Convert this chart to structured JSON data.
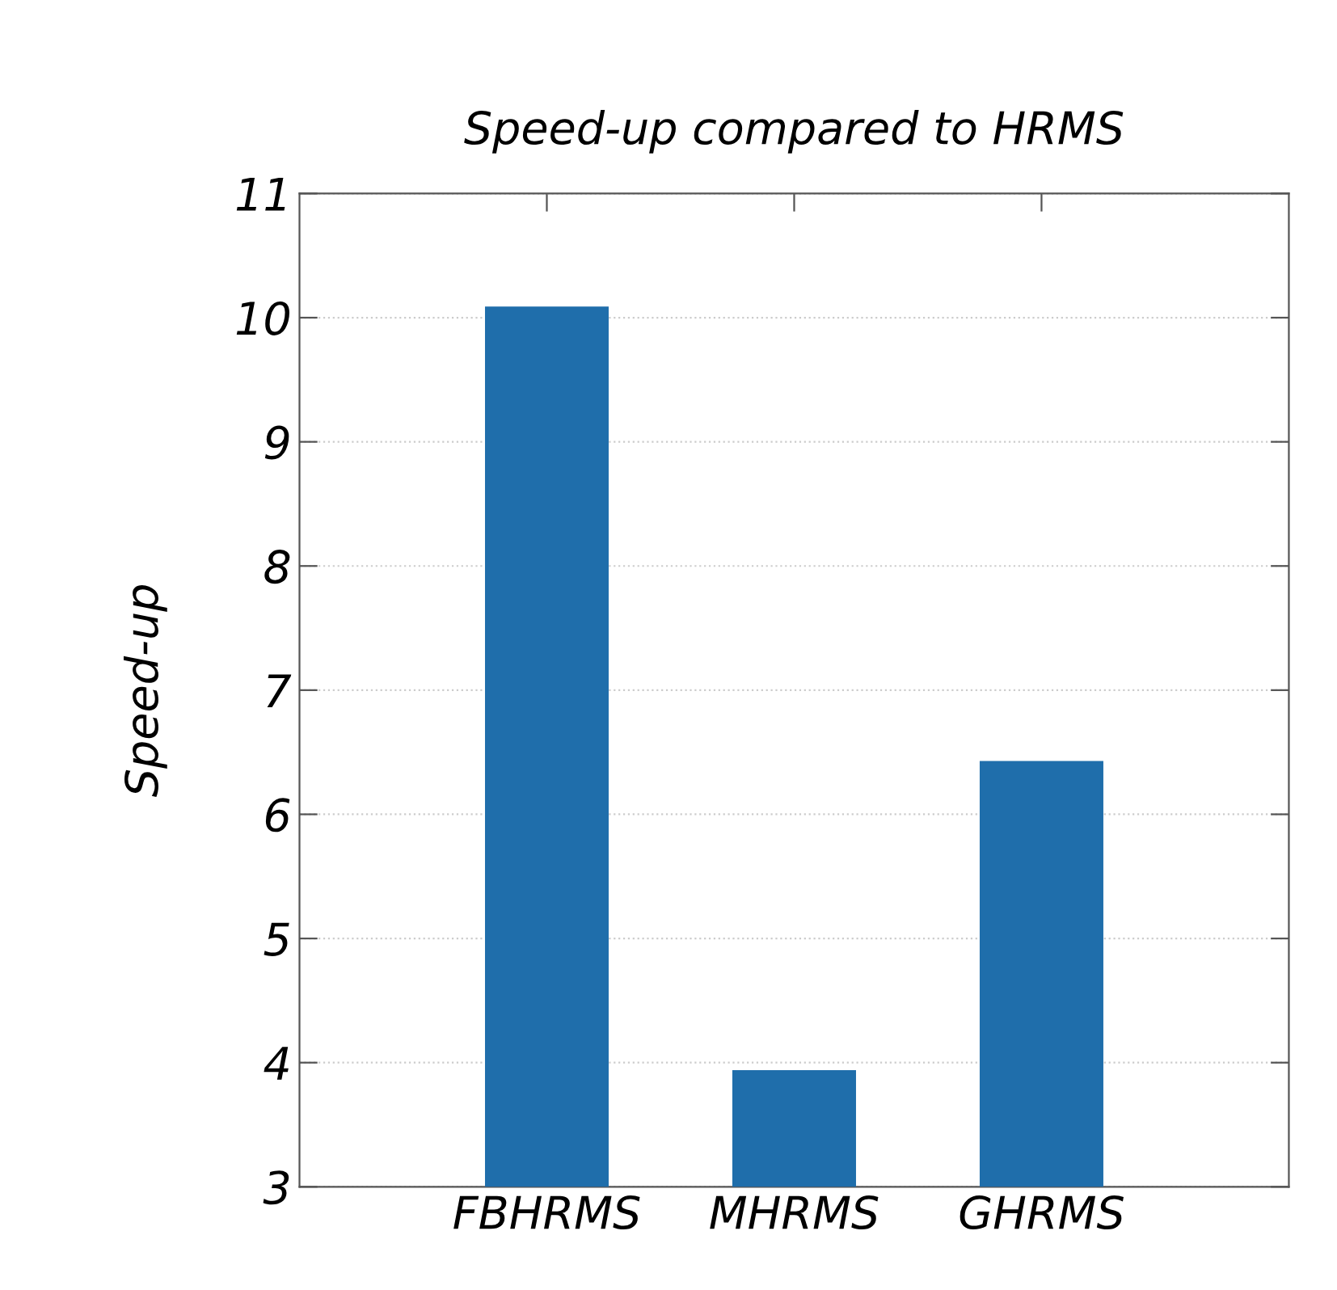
{
  "chart_data": {
    "type": "bar",
    "title": "Speed-up compared to HRMS",
    "ylabel": "Speed-up",
    "categories": [
      "FBHRMS",
      "MHRMS",
      "GHRMS"
    ],
    "values": [
      10.09,
      3.94,
      6.43
    ],
    "color": "#1f6eab",
    "ylim": [
      3,
      11
    ],
    "yticks": [
      3,
      4,
      5,
      6,
      7,
      8,
      9,
      10,
      11
    ],
    "grid": "y"
  }
}
